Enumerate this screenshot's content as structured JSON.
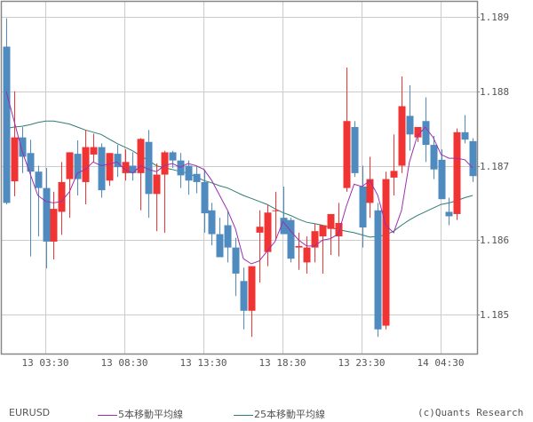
{
  "chart_data": {
    "type": "candlestick",
    "title": "",
    "symbol": "EURUSD",
    "xlabel": "",
    "ylabel": "",
    "ylim": [
      1.18475,
      1.18945
    ],
    "y_ticks": [
      "1.189",
      "1.188",
      "1.187",
      "1.186",
      "1.185"
    ],
    "x_ticks": [
      "13 03:30",
      "13 08:30",
      "13 13:30",
      "13 18:30",
      "13 23:30",
      "14 04:30"
    ],
    "grid": true,
    "colors": {
      "up": "#f03434",
      "down": "#4f8bbf",
      "ma5": "#9b2fae",
      "ma25": "#2e7d73",
      "grid": "#cccccc",
      "axis": "#888888"
    },
    "candles": [
      {
        "o": 1.1886,
        "h": 1.18898,
        "l": 1.18648,
        "c": 1.1865
      },
      {
        "o": 1.18679,
        "h": 1.188,
        "l": 1.18659,
        "c": 1.18738
      },
      {
        "o": 1.18738,
        "h": 1.18752,
        "l": 1.1869,
        "c": 1.18712
      },
      {
        "o": 1.18717,
        "h": 1.18735,
        "l": 1.18578,
        "c": 1.18692
      },
      {
        "o": 1.18692,
        "h": 1.187,
        "l": 1.18605,
        "c": 1.1867
      },
      {
        "o": 1.1867,
        "h": 1.18697,
        "l": 1.18562,
        "c": 1.18598
      },
      {
        "o": 1.18598,
        "h": 1.18665,
        "l": 1.18574,
        "c": 1.18642
      },
      {
        "o": 1.18638,
        "h": 1.18705,
        "l": 1.18607,
        "c": 1.18678
      },
      {
        "o": 1.18682,
        "h": 1.18718,
        "l": 1.1863,
        "c": 1.18718
      },
      {
        "o": 1.18716,
        "h": 1.18734,
        "l": 1.1866,
        "c": 1.18682
      },
      {
        "o": 1.18678,
        "h": 1.18748,
        "l": 1.18648,
        "c": 1.18725
      },
      {
        "o": 1.18715,
        "h": 1.18743,
        "l": 1.18705,
        "c": 1.18725
      },
      {
        "o": 1.18725,
        "h": 1.1873,
        "l": 1.18657,
        "c": 1.18667
      },
      {
        "o": 1.1868,
        "h": 1.18717,
        "l": 1.18673,
        "c": 1.18717
      },
      {
        "o": 1.18716,
        "h": 1.18728,
        "l": 1.18685,
        "c": 1.18698
      },
      {
        "o": 1.1869,
        "h": 1.18722,
        "l": 1.1868,
        "c": 1.18705
      },
      {
        "o": 1.187,
        "h": 1.18718,
        "l": 1.1868,
        "c": 1.1869
      },
      {
        "o": 1.1869,
        "h": 1.18737,
        "l": 1.1864,
        "c": 1.18736
      },
      {
        "o": 1.18732,
        "h": 1.18748,
        "l": 1.1863,
        "c": 1.18662
      },
      {
        "o": 1.18662,
        "h": 1.18703,
        "l": 1.18612,
        "c": 1.18688
      },
      {
        "o": 1.18688,
        "h": 1.1872,
        "l": 1.1861,
        "c": 1.18718
      },
      {
        "o": 1.18718,
        "h": 1.1872,
        "l": 1.18697,
        "c": 1.18707
      },
      {
        "o": 1.18707,
        "h": 1.18717,
        "l": 1.1867,
        "c": 1.18687
      },
      {
        "o": 1.187,
        "h": 1.18707,
        "l": 1.18661,
        "c": 1.1868
      },
      {
        "o": 1.18689,
        "h": 1.187,
        "l": 1.18663,
        "c": 1.18678
      },
      {
        "o": 1.18678,
        "h": 1.18695,
        "l": 1.1861,
        "c": 1.18636
      },
      {
        "o": 1.1864,
        "h": 1.1865,
        "l": 1.18593,
        "c": 1.18608
      },
      {
        "o": 1.18608,
        "h": 1.1863,
        "l": 1.1859,
        "c": 1.18577
      },
      {
        "o": 1.1862,
        "h": 1.1864,
        "l": 1.1857,
        "c": 1.1859
      },
      {
        "o": 1.1859,
        "h": 1.18603,
        "l": 1.18525,
        "c": 1.18555
      },
      {
        "o": 1.18545,
        "h": 1.18563,
        "l": 1.1848,
        "c": 1.18505
      },
      {
        "o": 1.18505,
        "h": 1.1856,
        "l": 1.1847,
        "c": 1.18565
      },
      {
        "o": 1.1861,
        "h": 1.1864,
        "l": 1.18543,
        "c": 1.18618
      },
      {
        "o": 1.18584,
        "h": 1.18648,
        "l": 1.18565,
        "c": 1.18637
      },
      {
        "o": 1.1864,
        "h": 1.18665,
        "l": 1.186,
        "c": 1.1864
      },
      {
        "o": 1.1863,
        "h": 1.18672,
        "l": 1.18615,
        "c": 1.18608
      },
      {
        "o": 1.18627,
        "h": 1.1863,
        "l": 1.1857,
        "c": 1.18575
      },
      {
        "o": 1.1859,
        "h": 1.1861,
        "l": 1.1856,
        "c": 1.18592
      },
      {
        "o": 1.1857,
        "h": 1.18605,
        "l": 1.18555,
        "c": 1.1859
      },
      {
        "o": 1.1859,
        "h": 1.18622,
        "l": 1.1857,
        "c": 1.18612
      },
      {
        "o": 1.18605,
        "h": 1.1862,
        "l": 1.18555,
        "c": 1.1862
      },
      {
        "o": 1.18615,
        "h": 1.18633,
        "l": 1.1858,
        "c": 1.18635
      },
      {
        "o": 1.18605,
        "h": 1.1865,
        "l": 1.18578,
        "c": 1.18623
      },
      {
        "o": 1.1867,
        "h": 1.18832,
        "l": 1.18665,
        "c": 1.1876
      },
      {
        "o": 1.18752,
        "h": 1.1876,
        "l": 1.18685,
        "c": 1.1869
      },
      {
        "o": 1.18672,
        "h": 1.187,
        "l": 1.1859,
        "c": 1.18617
      },
      {
        "o": 1.1865,
        "h": 1.18712,
        "l": 1.1863,
        "c": 1.18682
      },
      {
        "o": 1.1864,
        "h": 1.1865,
        "l": 1.1847,
        "c": 1.1848
      },
      {
        "o": 1.18485,
        "h": 1.18692,
        "l": 1.1848,
        "c": 1.18682
      },
      {
        "o": 1.18684,
        "h": 1.18742,
        "l": 1.1866,
        "c": 1.18693
      },
      {
        "o": 1.187,
        "h": 1.1882,
        "l": 1.1869,
        "c": 1.1878
      },
      {
        "o": 1.18767,
        "h": 1.18808,
        "l": 1.1872,
        "c": 1.18742
      },
      {
        "o": 1.18738,
        "h": 1.1875,
        "l": 1.18732,
        "c": 1.18752
      },
      {
        "o": 1.1876,
        "h": 1.18792,
        "l": 1.18705,
        "c": 1.18728
      },
      {
        "o": 1.18728,
        "h": 1.1874,
        "l": 1.18682,
        "c": 1.18695
      },
      {
        "o": 1.18708,
        "h": 1.18722,
        "l": 1.1866,
        "c": 1.18655
      },
      {
        "o": 1.18638,
        "h": 1.18657,
        "l": 1.1862,
        "c": 1.18632
      },
      {
        "o": 1.18635,
        "h": 1.1875,
        "l": 1.18627,
        "c": 1.18745
      },
      {
        "o": 1.18745,
        "h": 1.18768,
        "l": 1.1873,
        "c": 1.18735
      },
      {
        "o": 1.18733,
        "h": 1.18737,
        "l": 1.18678,
        "c": 1.18686
      }
    ],
    "series": [
      {
        "name": "5本移動平均線",
        "values": [
          1.188,
          1.1876,
          1.1872,
          1.1869,
          1.1866,
          1.18652,
          1.1865,
          1.18652,
          1.18665,
          1.1869,
          1.18695,
          1.18705,
          1.187,
          1.18702,
          1.18705,
          1.18695,
          1.1869,
          1.187,
          1.18695,
          1.18692,
          1.187,
          1.18703,
          1.18698,
          1.18703,
          1.187,
          1.18695,
          1.1868,
          1.1866,
          1.1864,
          1.18615,
          1.18575,
          1.18568,
          1.18572,
          1.18585,
          1.18598,
          1.18625,
          1.18612,
          1.186,
          1.18592,
          1.18592,
          1.186,
          1.18602,
          1.18608,
          1.18645,
          1.18675,
          1.18672,
          1.1868,
          1.1866,
          1.1862,
          1.1861,
          1.1864,
          1.18705,
          1.1874,
          1.18752,
          1.18738,
          1.18715,
          1.1871,
          1.1871,
          1.18708,
          1.18697
        ]
      },
      {
        "name": "25本移動平均線",
        "values": [
          1.1875,
          1.18752,
          1.18753,
          1.18755,
          1.18758,
          1.1876,
          1.1876,
          1.18758,
          1.18756,
          1.18752,
          1.18748,
          1.18745,
          1.18742,
          1.18736,
          1.1873,
          1.18725,
          1.1872,
          1.18713,
          1.18707,
          1.187,
          1.18697,
          1.18695,
          1.18692,
          1.1869,
          1.18685,
          1.1868,
          1.18677,
          1.18673,
          1.1867,
          1.18665,
          1.1866,
          1.18656,
          1.18652,
          1.18648,
          1.18642,
          1.18637,
          1.18633,
          1.18628,
          1.18624,
          1.18622,
          1.1862,
          1.18617,
          1.18614,
          1.18612,
          1.1861,
          1.18607,
          1.18604,
          1.18605,
          1.18607,
          1.18612,
          1.1862,
          1.18627,
          1.18633,
          1.18638,
          1.18643,
          1.18648,
          1.1865,
          1.18653,
          1.18657,
          1.1866
        ]
      }
    ]
  },
  "legend": {
    "symbol": "EURUSD",
    "ma5_label": "5本移動平均線",
    "ma25_label": "25本移動平均線",
    "copyright": "(c)Quants Research"
  }
}
